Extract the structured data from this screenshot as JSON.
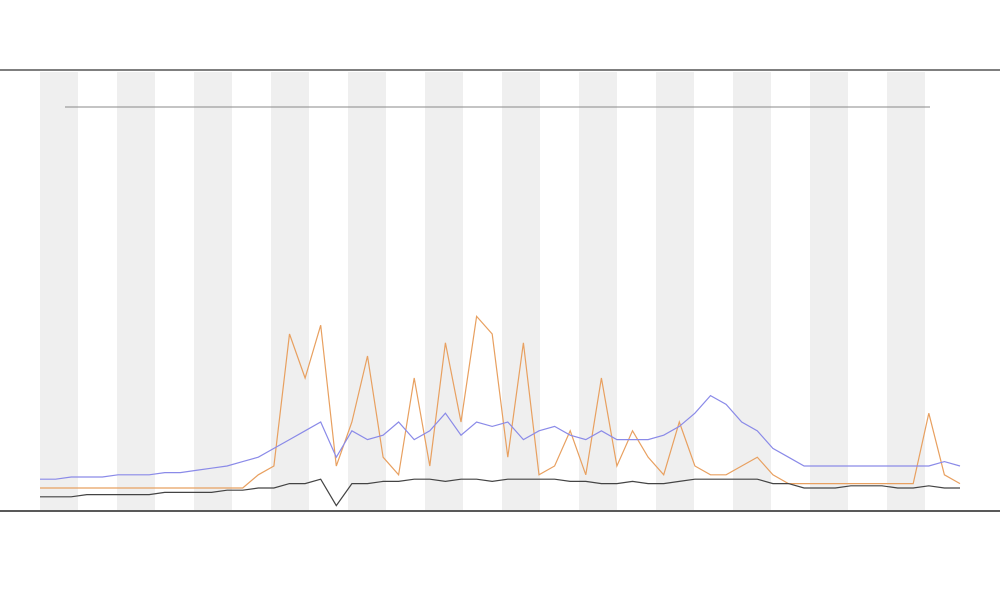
{
  "chart_data": {
    "type": "line",
    "categories": [
      null,
      null,
      null,
      null,
      null,
      null,
      null,
      null,
      null,
      null,
      null,
      null,
      null,
      null,
      null,
      null,
      null,
      null,
      null,
      null,
      null,
      null,
      null,
      null,
      null,
      null,
      null,
      null,
      null,
      null,
      null,
      null,
      null,
      null,
      null,
      null,
      null,
      null,
      null,
      null,
      null,
      null,
      null,
      null,
      null,
      null,
      null,
      null,
      null,
      null,
      null,
      null,
      null,
      null,
      null,
      null,
      null,
      null,
      null,
      null
    ],
    "ylim": [
      0,
      100
    ],
    "series": [
      {
        "color": "#e8a060",
        "values": [
          5,
          5,
          5,
          5,
          5,
          5,
          5,
          5,
          5,
          5,
          5,
          5,
          5,
          5,
          8,
          10,
          40,
          30,
          42,
          10,
          20,
          35,
          12,
          8,
          30,
          10,
          38,
          20,
          44,
          40,
          12,
          38,
          8,
          10,
          18,
          8,
          30,
          10,
          18,
          12,
          8,
          20,
          10,
          8,
          8,
          10,
          12,
          8,
          6,
          6,
          6,
          6,
          6,
          6,
          6,
          6,
          6,
          22,
          8,
          6
        ]
      },
      {
        "color": "#8a8ae8",
        "values": [
          7,
          7,
          7.5,
          7.5,
          7.5,
          8,
          8,
          8,
          8.5,
          8.5,
          9,
          9.5,
          10,
          11,
          12,
          14,
          16,
          18,
          20,
          12,
          18,
          16,
          17,
          20,
          16,
          18,
          22,
          17,
          20,
          19,
          20,
          16,
          18,
          19,
          17,
          16,
          18,
          16,
          16,
          16,
          17,
          19,
          22,
          26,
          24,
          20,
          18,
          14,
          12,
          10,
          10,
          10,
          10,
          10,
          10,
          10,
          10,
          10,
          11,
          10
        ]
      },
      {
        "color": "#444444",
        "values": [
          3,
          3,
          3,
          3.5,
          3.5,
          3.5,
          3.5,
          3.5,
          4,
          4,
          4,
          4,
          4.5,
          4.5,
          5,
          5,
          6,
          6,
          7,
          1,
          6,
          6,
          6.5,
          6.5,
          7,
          7,
          6.5,
          7,
          7,
          6.5,
          7,
          7,
          7,
          7,
          6.5,
          6.5,
          6,
          6,
          6.5,
          6,
          6,
          6.5,
          7,
          7,
          7,
          7,
          7,
          6,
          6,
          5,
          5,
          5,
          5.5,
          5.5,
          5.5,
          5,
          5,
          5.5,
          5,
          5
        ]
      }
    ]
  }
}
